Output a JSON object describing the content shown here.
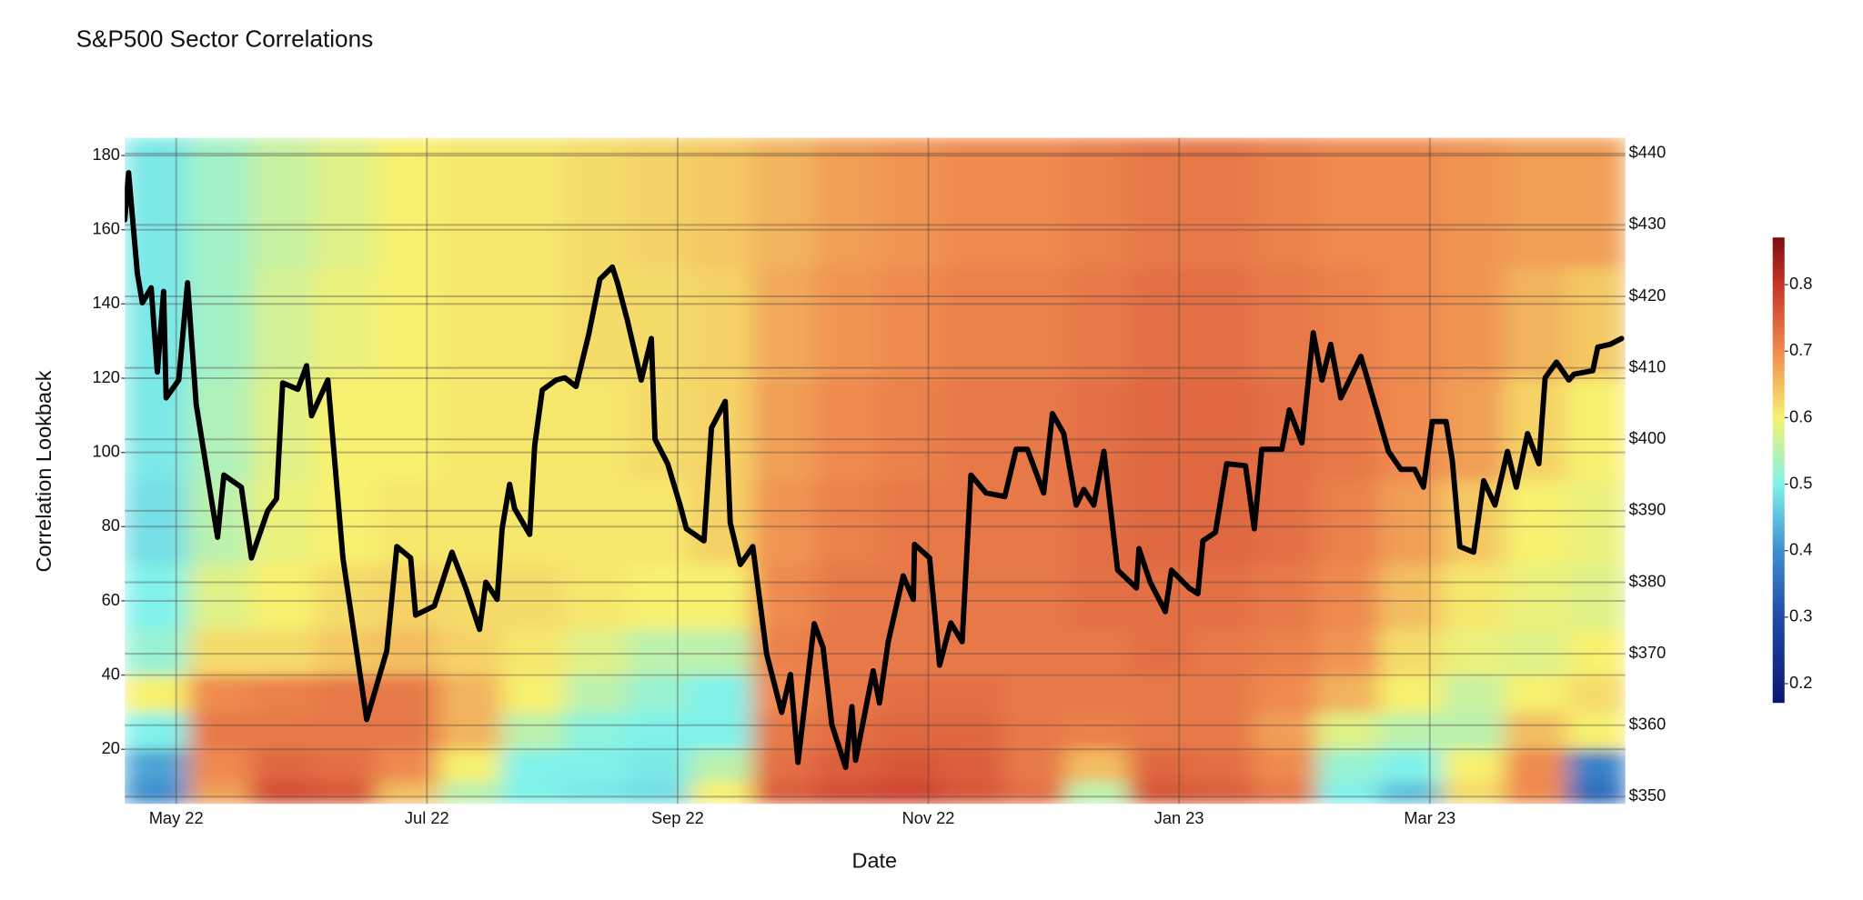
{
  "chart_data": {
    "type": "heatmap",
    "title": "S&P500 Sector Correlations",
    "xlabel": "Date",
    "ylabel": "Correlation Lookback",
    "xlim": [
      3.59,
      15.56
    ],
    "xticks": [
      {
        "value": 4,
        "label": "May 22"
      },
      {
        "value": 6,
        "label": "Jul 22"
      },
      {
        "value": 8,
        "label": "Sep 22"
      },
      {
        "value": 10,
        "label": "Nov 22"
      },
      {
        "value": 12,
        "label": "Jan 23"
      },
      {
        "value": 14,
        "label": "Mar 23"
      }
    ],
    "ylim": [
      5.3,
      184.8
    ],
    "yticks": [
      20,
      40,
      60,
      80,
      100,
      120,
      140,
      160,
      180
    ],
    "y2lim": [
      349,
      442.2
    ],
    "y2ticks": [
      {
        "value": 350,
        "label": "$350"
      },
      {
        "value": 360,
        "label": "$360"
      },
      {
        "value": 370,
        "label": "$370"
      },
      {
        "value": 380,
        "label": "$380"
      },
      {
        "value": 390,
        "label": "$390"
      },
      {
        "value": 400,
        "label": "$400"
      },
      {
        "value": 410,
        "label": "$410"
      },
      {
        "value": 420,
        "label": "$420"
      },
      {
        "value": 430,
        "label": "$430"
      },
      {
        "value": 440,
        "label": "$440"
      }
    ],
    "grid": true,
    "colorbar": {
      "lim": [
        0.171,
        0.871
      ],
      "ticks": [
        0.2,
        0.3,
        0.4,
        0.5,
        0.6,
        0.7,
        0.8
      ]
    },
    "colorscale": [
      [
        0.171,
        "#0a1670"
      ],
      [
        0.3,
        "#1f4aa8"
      ],
      [
        0.4,
        "#3f8fcf"
      ],
      [
        0.5,
        "#80f2ea"
      ],
      [
        0.6,
        "#f7f170"
      ],
      [
        0.7,
        "#ef8a50"
      ],
      [
        0.8,
        "#c73328"
      ],
      [
        0.871,
        "#7a0f0f"
      ]
    ],
    "heatmap": {
      "x": [
        3.85,
        4.35,
        4.85,
        5.35,
        5.85,
        6.35,
        6.85,
        7.35,
        7.85,
        8.35,
        8.85,
        9.35,
        9.85,
        10.35,
        10.85,
        11.35,
        11.85,
        12.35,
        12.85,
        13.35,
        13.85,
        14.35,
        14.85,
        15.35
      ],
      "y": [
        8,
        15,
        25,
        35,
        45,
        60,
        80,
        105,
        135,
        165
      ],
      "z": [
        [
          0.4,
          0.68,
          0.77,
          0.76,
          0.65,
          0.55,
          0.5,
          0.49,
          0.48,
          0.6,
          0.75,
          0.77,
          0.78,
          0.76,
          0.73,
          0.55,
          0.76,
          0.75,
          0.72,
          0.5,
          0.45,
          0.62,
          0.7,
          0.35
        ],
        [
          0.42,
          0.7,
          0.74,
          0.73,
          0.7,
          0.6,
          0.5,
          0.5,
          0.49,
          0.55,
          0.73,
          0.75,
          0.76,
          0.75,
          0.72,
          0.65,
          0.74,
          0.73,
          0.7,
          0.52,
          0.5,
          0.6,
          0.7,
          0.38
        ],
        [
          0.5,
          0.72,
          0.72,
          0.72,
          0.72,
          0.66,
          0.55,
          0.51,
          0.5,
          0.5,
          0.72,
          0.73,
          0.74,
          0.74,
          0.72,
          0.71,
          0.72,
          0.72,
          0.68,
          0.58,
          0.55,
          0.55,
          0.65,
          0.6
        ],
        [
          0.6,
          0.7,
          0.71,
          0.72,
          0.72,
          0.66,
          0.6,
          0.55,
          0.52,
          0.5,
          0.7,
          0.72,
          0.73,
          0.73,
          0.72,
          0.72,
          0.72,
          0.72,
          0.7,
          0.66,
          0.6,
          0.56,
          0.6,
          0.62
        ],
        [
          0.52,
          0.62,
          0.62,
          0.64,
          0.65,
          0.63,
          0.61,
          0.58,
          0.55,
          0.55,
          0.71,
          0.72,
          0.72,
          0.72,
          0.72,
          0.72,
          0.73,
          0.72,
          0.71,
          0.69,
          0.62,
          0.59,
          0.58,
          0.6
        ],
        [
          0.5,
          0.58,
          0.6,
          0.62,
          0.63,
          0.62,
          0.62,
          0.61,
          0.6,
          0.6,
          0.7,
          0.72,
          0.72,
          0.72,
          0.72,
          0.73,
          0.73,
          0.73,
          0.72,
          0.7,
          0.65,
          0.61,
          0.59,
          0.58
        ],
        [
          0.48,
          0.55,
          0.59,
          0.6,
          0.61,
          0.61,
          0.61,
          0.61,
          0.61,
          0.63,
          0.69,
          0.71,
          0.72,
          0.72,
          0.72,
          0.73,
          0.74,
          0.74,
          0.73,
          0.71,
          0.68,
          0.64,
          0.6,
          0.59
        ],
        [
          0.49,
          0.54,
          0.58,
          0.6,
          0.6,
          0.61,
          0.61,
          0.61,
          0.62,
          0.63,
          0.68,
          0.7,
          0.71,
          0.72,
          0.72,
          0.73,
          0.74,
          0.74,
          0.73,
          0.72,
          0.7,
          0.68,
          0.63,
          0.6
        ],
        [
          0.49,
          0.53,
          0.57,
          0.59,
          0.6,
          0.61,
          0.61,
          0.62,
          0.62,
          0.63,
          0.67,
          0.69,
          0.7,
          0.71,
          0.71,
          0.72,
          0.73,
          0.73,
          0.72,
          0.71,
          0.7,
          0.69,
          0.66,
          0.64
        ],
        [
          0.49,
          0.53,
          0.56,
          0.58,
          0.6,
          0.61,
          0.61,
          0.62,
          0.63,
          0.64,
          0.66,
          0.68,
          0.69,
          0.7,
          0.7,
          0.71,
          0.72,
          0.72,
          0.71,
          0.7,
          0.7,
          0.69,
          0.68,
          0.68
        ]
      ]
    },
    "series": [
      {
        "color": "#000000",
        "axis": "y2",
        "x": [
          3.59,
          3.62,
          3.69,
          3.73,
          3.8,
          3.85,
          3.9,
          3.92,
          4.02,
          4.09,
          4.16,
          4.28,
          4.33,
          4.38,
          4.52,
          4.6,
          4.73,
          4.8,
          4.85,
          4.97,
          5.04,
          5.08,
          5.21,
          5.33,
          5.46,
          5.52,
          5.68,
          5.76,
          5.87,
          5.91,
          6.06,
          6.2,
          6.31,
          6.42,
          6.47,
          6.56,
          6.6,
          6.66,
          6.7,
          6.82,
          6.86,
          6.92,
          7.03,
          7.1,
          7.19,
          7.29,
          7.38,
          7.48,
          7.52,
          7.6,
          7.71,
          7.79,
          7.82,
          7.92,
          8.02,
          8.07,
          8.21,
          8.27,
          8.38,
          8.42,
          8.5,
          8.6,
          8.71,
          8.83,
          8.9,
          8.96,
          9.09,
          9.16,
          9.23,
          9.34,
          9.39,
          9.42,
          9.56,
          9.61,
          9.68,
          9.8,
          9.88,
          9.89,
          10.01,
          10.09,
          10.18,
          10.27,
          10.34,
          10.46,
          10.61,
          10.7,
          10.79,
          10.92,
          10.99,
          11.08,
          11.18,
          11.24,
          11.32,
          11.4,
          11.51,
          11.66,
          11.68,
          11.77,
          11.89,
          11.94,
          12.08,
          12.15,
          12.19,
          12.29,
          12.38,
          12.53,
          12.6,
          12.66,
          12.82,
          12.88,
          12.98,
          13.07,
          13.14,
          13.21,
          13.29,
          13.45,
          13.52,
          13.67,
          13.77,
          13.88,
          13.95,
          14.02,
          14.13,
          14.18,
          14.24,
          14.35,
          14.43,
          14.52,
          14.62,
          14.69,
          14.78,
          14.87,
          14.92,
          15.01,
          15.11,
          15.15,
          15.3,
          15.34,
          15.44,
          15.53
        ],
        "values": [
          430.7,
          437.3,
          423.2,
          419.1,
          421.2,
          409.4,
          420.7,
          405.8,
          408.3,
          421.9,
          404.9,
          391.7,
          386.3,
          395,
          393.3,
          383.4,
          390,
          391.7,
          407.9,
          407,
          410.3,
          403.3,
          408.3,
          383.4,
          367.9,
          360.8,
          370.4,
          385,
          383.4,
          375.4,
          376.7,
          384.2,
          379.2,
          373.4,
          380,
          377.6,
          387.5,
          393.7,
          390.3,
          386.7,
          399.1,
          406.9,
          408.3,
          408.6,
          407.4,
          414.6,
          422.4,
          424.1,
          421.9,
          416.6,
          408.3,
          414.1,
          400,
          396.6,
          390.8,
          387.5,
          385.8,
          401.6,
          405.3,
          388.3,
          382.5,
          385,
          370,
          361.8,
          367.1,
          354.8,
          374.2,
          370.9,
          360.1,
          354.1,
          362.6,
          355.1,
          367.6,
          363.1,
          371.7,
          380.9,
          377.6,
          385.3,
          383.4,
          368.4,
          374.3,
          371.7,
          395,
          392.5,
          392,
          398.6,
          398.6,
          392.5,
          403.6,
          400.8,
          390.8,
          393,
          390.8,
          398.3,
          381.7,
          379.2,
          384.7,
          380,
          375.9,
          381.7,
          379.2,
          378.4,
          385.8,
          387,
          396.6,
          396.3,
          387.5,
          398.6,
          398.6,
          404.1,
          399.5,
          414.9,
          408.3,
          413.3,
          405.8,
          411.6,
          407.4,
          398.3,
          395.8,
          395.8,
          393.3,
          402.5,
          402.5,
          397,
          385,
          384.2,
          394.2,
          390.8,
          398.3,
          393.3,
          400.8,
          396.6,
          408.6,
          410.8,
          408.3,
          409.1,
          409.6,
          412.9,
          413.3,
          414.1
        ]
      }
    ]
  }
}
